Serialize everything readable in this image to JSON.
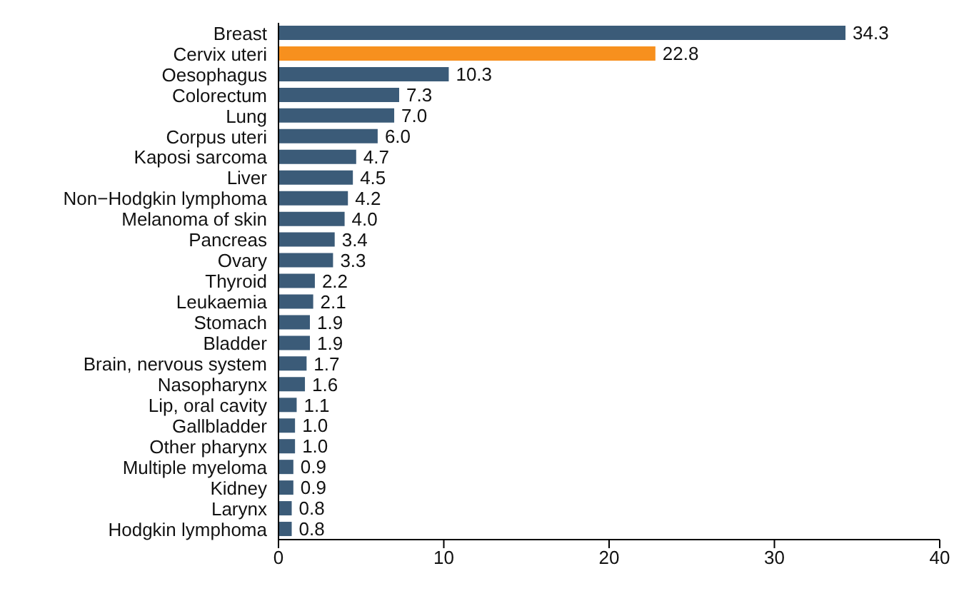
{
  "chart_data": {
    "type": "bar",
    "orientation": "horizontal",
    "categories": [
      "Breast",
      "Cervix uteri",
      "Oesophagus",
      "Colorectum",
      "Lung",
      "Corpus uteri",
      "Kaposi sarcoma",
      "Liver",
      "Non−Hodgkin lymphoma",
      "Melanoma of skin",
      "Pancreas",
      "Ovary",
      "Thyroid",
      "Leukaemia",
      "Stomach",
      "Bladder",
      "Brain, nervous system",
      "Nasopharynx",
      "Lip, oral cavity",
      "Gallbladder",
      "Other pharynx",
      "Multiple myeloma",
      "Kidney",
      "Larynx",
      "Hodgkin lymphoma"
    ],
    "values": [
      34.3,
      22.8,
      10.3,
      7.3,
      7.0,
      6.0,
      4.7,
      4.5,
      4.2,
      4.0,
      3.4,
      3.3,
      2.2,
      2.1,
      1.9,
      1.9,
      1.7,
      1.6,
      1.1,
      1.0,
      1.0,
      0.9,
      0.9,
      0.8,
      0.8
    ],
    "colors": [
      "#3b5b78",
      "#f7901e",
      "#3b5b78",
      "#3b5b78",
      "#3b5b78",
      "#3b5b78",
      "#3b5b78",
      "#3b5b78",
      "#3b5b78",
      "#3b5b78",
      "#3b5b78",
      "#3b5b78",
      "#3b5b78",
      "#3b5b78",
      "#3b5b78",
      "#3b5b78",
      "#3b5b78",
      "#3b5b78",
      "#3b5b78",
      "#3b5b78",
      "#3b5b78",
      "#3b5b78",
      "#3b5b78",
      "#3b5b78",
      "#3b5b78"
    ],
    "value_labels": [
      "34.3",
      "22.8",
      "10.3",
      "7.3",
      "7.0",
      "6.0",
      "4.7",
      "4.5",
      "4.2",
      "4.0",
      "3.4",
      "3.3",
      "2.2",
      "2.1",
      "1.9",
      "1.9",
      "1.7",
      "1.6",
      "1.1",
      "1.0",
      "1.0",
      "0.9",
      "0.9",
      "0.8",
      "0.8"
    ],
    "xlim": [
      0,
      40
    ],
    "xticks": [
      0,
      10,
      20,
      30,
      40
    ],
    "grid": false
  }
}
